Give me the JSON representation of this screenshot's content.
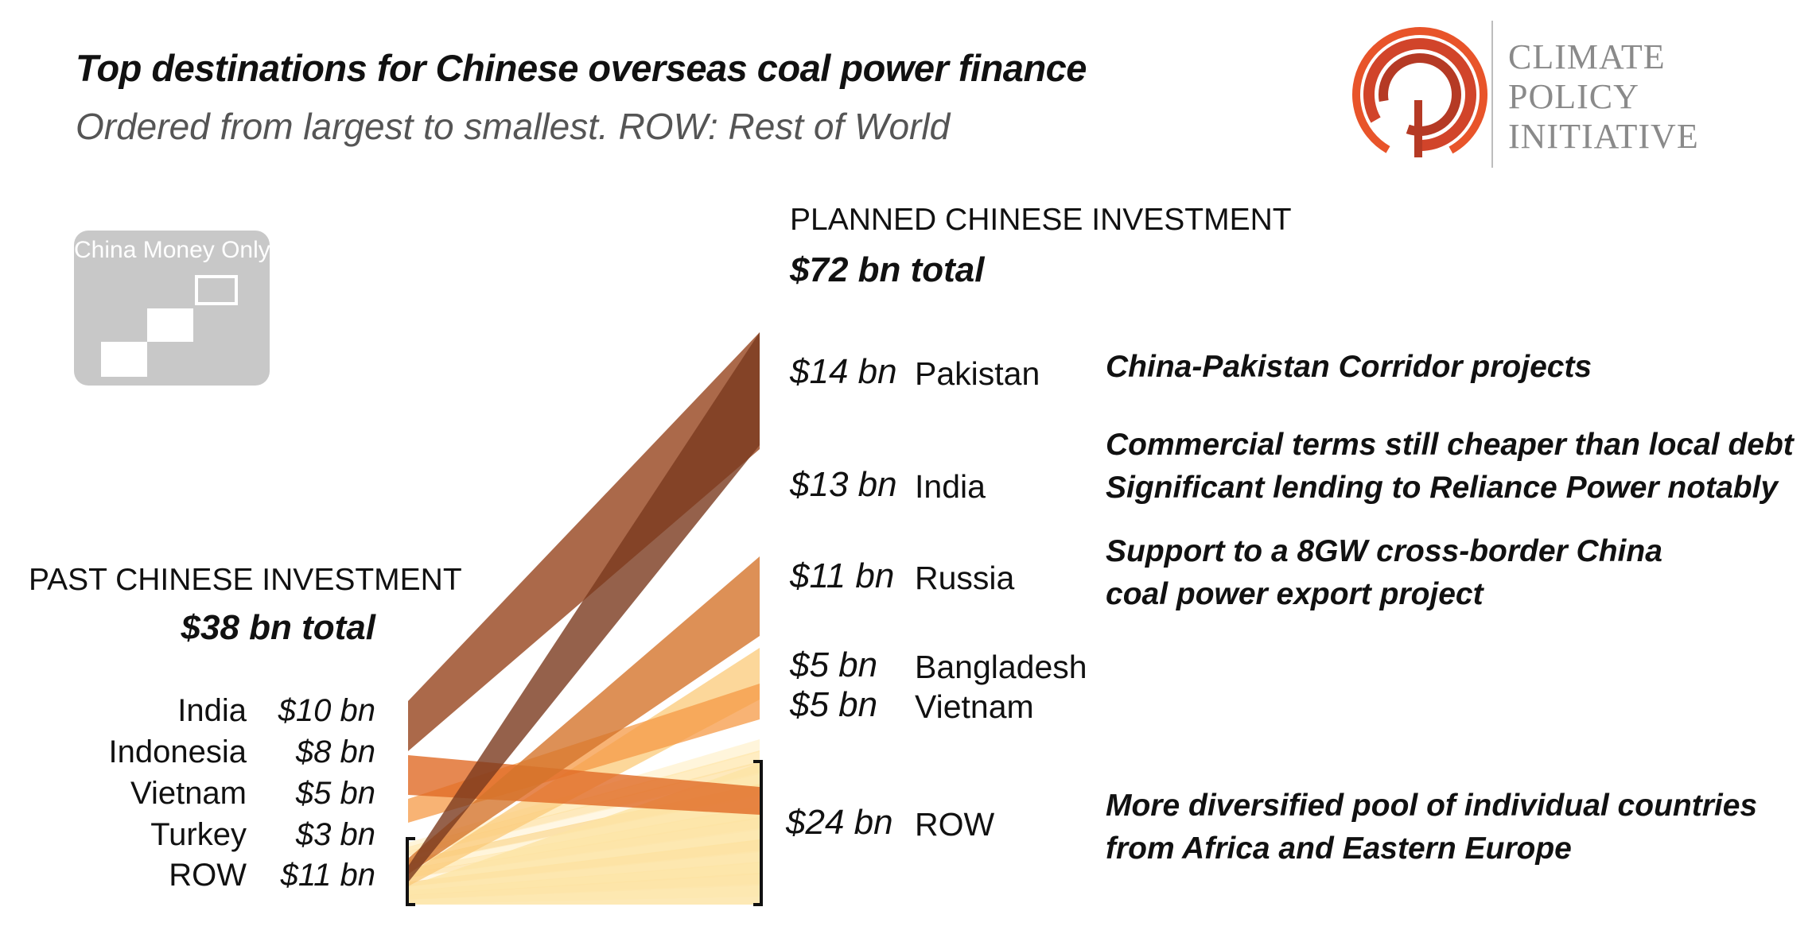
{
  "title": "Top destinations for Chinese overseas coal power finance",
  "subtitle": "Ordered from largest to smallest. ROW: Rest of World",
  "logo": {
    "lines": [
      "CLIMATE",
      "POLICY",
      "INITIATIVE"
    ]
  },
  "badge": {
    "label": "China Money Only"
  },
  "chart_data": {
    "type": "alluvial",
    "past": {
      "header": "PAST CHINESE INVESTMENT",
      "total": "$38 bn total",
      "items": [
        {
          "name": "India",
          "value": "$10 bn"
        },
        {
          "name": "Indonesia",
          "value": "$8 bn"
        },
        {
          "name": "Vietnam",
          "value": "$5 bn"
        },
        {
          "name": "Turkey",
          "value": "$3 bn"
        },
        {
          "name": "ROW",
          "value": "$11 bn"
        }
      ]
    },
    "planned": {
      "header": "PLANNED CHINESE INVESTMENT",
      "total": "$72 bn total",
      "items": [
        {
          "name": "Pakistan",
          "value": "$14 bn",
          "note": [
            "China-Pakistan Corridor projects"
          ]
        },
        {
          "name": "India",
          "value": "$13 bn",
          "note": [
            "Commercial terms still cheaper than local debt",
            "Significant lending to Reliance Power notably"
          ]
        },
        {
          "name": "Russia",
          "value": "$11 bn",
          "note": [
            "Support to a 8GW cross-border China",
            "coal  power export project"
          ]
        },
        {
          "name": "Bangladesh",
          "value": "$5 bn",
          "note": []
        },
        {
          "name": "Vietnam",
          "value": "$5 bn",
          "note": []
        },
        {
          "name": "ROW",
          "value": "$24 bn",
          "note": [
            "More diversified pool of individual countries",
            "from Africa and Eastern Europe"
          ]
        }
      ]
    },
    "flows": [
      {
        "from": "India",
        "to": "India",
        "width": 10,
        "color": "#9c4f2a"
      },
      {
        "from": "Indonesia",
        "to": "ROW",
        "width": 8,
        "color": "#e06a26"
      },
      {
        "from": "Vietnam",
        "to": "Vietnam",
        "width": 5,
        "color": "#f69a45"
      },
      {
        "from": "ROW",
        "to": "Pakistan",
        "width": 14,
        "color": "#7a3a1e"
      },
      {
        "from": "ROW",
        "to": "Russia",
        "width": 11,
        "color": "#d5742c"
      },
      {
        "from": "ROW",
        "to": "Bangladesh",
        "width": 5,
        "color": "#fbc978"
      },
      {
        "from": "ROW",
        "to": "ROW",
        "width": 16,
        "color": "#fde3a4"
      }
    ]
  }
}
